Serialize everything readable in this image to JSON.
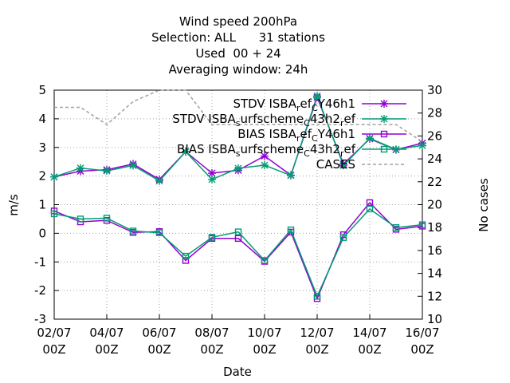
{
  "chart_data": {
    "type": "line",
    "title_lines": [
      "Wind speed 200hPa",
      "Selection: ALL      31 stations",
      "Used  00 + 24",
      "Averaging window: 24h"
    ],
    "xlabel": "Date",
    "ylabel": "m/s",
    "y2label": "No cases",
    "ylim": [
      -3,
      5
    ],
    "y_ticks": [
      "-3",
      "-2",
      "-1",
      "0",
      "1",
      "2",
      "3",
      "4",
      "5"
    ],
    "y2lim": [
      10,
      30
    ],
    "y2_ticks": [
      "10",
      "12",
      "14",
      "16",
      "18",
      "20",
      "22",
      "24",
      "26",
      "28",
      "30"
    ],
    "grid": true,
    "legend_position": "top-right",
    "x": [
      "02/07 00Z",
      "03/07 00Z",
      "04/07 00Z",
      "05/07 00Z",
      "06/07 00Z",
      "07/07 00Z",
      "08/07 00Z",
      "09/07 00Z",
      "10/07 00Z",
      "11/07 00Z",
      "12/07 00Z",
      "13/07 00Z",
      "14/07 00Z",
      "15/07 00Z",
      "16/07 00Z"
    ],
    "x_tick_labels": [
      {
        "index": 0,
        "line1": "02/07",
        "line2": "00Z"
      },
      {
        "index": 2,
        "line1": "04/07",
        "line2": "00Z"
      },
      {
        "index": 4,
        "line1": "06/07",
        "line2": "00Z"
      },
      {
        "index": 6,
        "line1": "08/07",
        "line2": "00Z"
      },
      {
        "index": 8,
        "line1": "10/07",
        "line2": "00Z"
      },
      {
        "index": 10,
        "line1": "12/07",
        "line2": "00Z"
      },
      {
        "index": 12,
        "line1": "14/07",
        "line2": "00Z"
      },
      {
        "index": 14,
        "line1": "16/07",
        "line2": "00Z"
      }
    ],
    "series": [
      {
        "name": "STDV ISBA_ref_CY46h1",
        "legend": {
          "main": "STDV ISBA",
          "sub1": "r",
          "mid1": "ef",
          "sub2": "C",
          "tail": "Y46h1"
        },
        "color": "#9400d3",
        "marker": "star",
        "axis": "y",
        "values": [
          1.97,
          2.17,
          2.22,
          2.42,
          1.88,
          2.85,
          2.1,
          2.2,
          2.7,
          2.03,
          4.75,
          2.42,
          3.3,
          2.92,
          3.15
        ]
      },
      {
        "name": "STDV ISBA_surfscheme_C43h2_ref",
        "legend": {
          "main": "STDV ISBA",
          "sub1": "s",
          "mid1": "urfscheme",
          "sub2": "C",
          "tail": "43h2",
          "sub3": "r",
          "tail2": "ef"
        },
        "color": "#009e73",
        "marker": "star",
        "axis": "y",
        "values": [
          1.97,
          2.28,
          2.18,
          2.37,
          1.83,
          2.85,
          1.88,
          2.27,
          2.38,
          2.02,
          4.8,
          2.37,
          3.32,
          2.93,
          3.07
        ]
      },
      {
        "name": "BIAS ISBA_ref_CY46h1",
        "legend": {
          "main": "BIAS ISBA",
          "sub1": "r",
          "mid1": "ef",
          "sub2": "C",
          "tail": "Y46h1"
        },
        "color": "#9400d3",
        "marker": "square",
        "axis": "y",
        "values": [
          0.78,
          0.4,
          0.45,
          0.03,
          0.06,
          -0.95,
          -0.18,
          -0.18,
          -0.98,
          0.04,
          -2.28,
          -0.05,
          1.07,
          0.14,
          0.25
        ]
      },
      {
        "name": "BIAS ISBA_surfscheme_C43h2_ref",
        "legend": {
          "main": "BIAS ISBA",
          "sub1": "s",
          "mid1": "urfscheme",
          "sub2": "C",
          "tail": "43h2",
          "sub3": "r",
          "tail2": "ef"
        },
        "color": "#009e73",
        "marker": "square",
        "axis": "y",
        "values": [
          0.68,
          0.5,
          0.53,
          0.08,
          0.02,
          -0.8,
          -0.14,
          0.05,
          -0.95,
          0.12,
          -2.2,
          -0.15,
          0.85,
          0.2,
          0.3
        ]
      },
      {
        "name": "CASES",
        "legend": {
          "main": "CASES"
        },
        "color": "#a0a0a0",
        "marker": "none",
        "dash": true,
        "axis": "y2",
        "values": [
          28.5,
          28.5,
          27.0,
          29.0,
          30.0,
          30.0,
          27.0,
          27.0,
          27.0,
          27.0,
          27.0,
          27.0,
          27.0,
          27.0,
          25.5
        ]
      }
    ]
  }
}
